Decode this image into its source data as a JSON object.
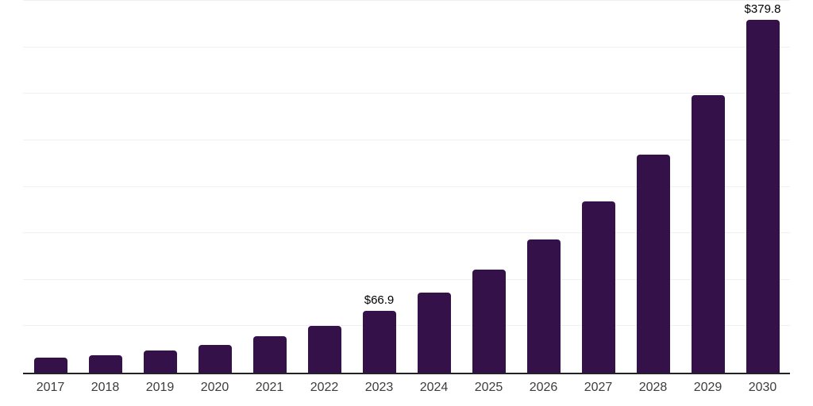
{
  "chart_data": {
    "type": "bar",
    "title": "",
    "xlabel": "",
    "ylabel": "",
    "categories": [
      "2017",
      "2018",
      "2019",
      "2020",
      "2021",
      "2022",
      "2023",
      "2024",
      "2025",
      "2026",
      "2027",
      "2028",
      "2029",
      "2030"
    ],
    "values": [
      15.8,
      18.5,
      24.0,
      30.2,
      39.6,
      50.5,
      66.9,
      86.0,
      111.3,
      143.5,
      184.0,
      234.5,
      298.5,
      379.8
    ],
    "data_labels": [
      "",
      "",
      "",
      "",
      "",
      "",
      "$66.9",
      "",
      "",
      "",
      "",
      "",
      "",
      "$379.8"
    ],
    "ylim": [
      0,
      400
    ],
    "grid_step": 50,
    "grid": true,
    "legend": false,
    "y_axis_tick_labels_visible": false
  },
  "colors": {
    "bar": "#35114A",
    "gridline": "#f0f0f0",
    "axis_line": "#232227",
    "x_tick_label": "#3d3d3d",
    "value_label": "#000000",
    "background": "#ffffff"
  }
}
